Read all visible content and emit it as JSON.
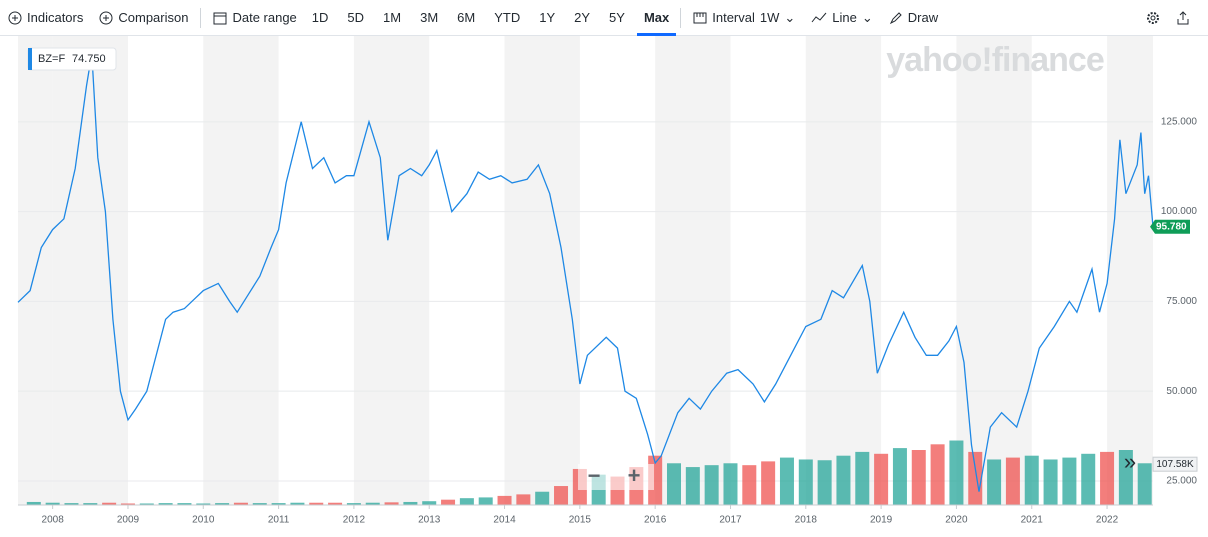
{
  "toolbar": {
    "indicators": "Indicators",
    "comparison": "Comparison",
    "date_range": "Date range",
    "ranges": [
      "1D",
      "5D",
      "1M",
      "3M",
      "6M",
      "YTD",
      "1Y",
      "2Y",
      "5Y",
      "Max"
    ],
    "active_range": "Max",
    "interval": "Interval",
    "interval_value": "1W",
    "line": "Line",
    "draw": "Draw"
  },
  "watermark": "yahoo!finance",
  "zoom": {
    "minus": "−",
    "plus": "+",
    "more": "»"
  },
  "chart_data": {
    "type": "line",
    "legend": {
      "symbol": "BZ=F",
      "value": 74.75,
      "label": "74.750"
    },
    "xlim": [
      2007.54,
      2022.61
    ],
    "xticks": [
      2008,
      2009,
      2010,
      2011,
      2012,
      2013,
      2014,
      2015,
      2016,
      2017,
      2018,
      2019,
      2020,
      2021,
      2022
    ],
    "ylim": [
      18.3,
      148.9
    ],
    "yticks": [
      {
        "value": 25,
        "label": "25.000"
      },
      {
        "value": 50,
        "label": "50.000"
      },
      {
        "value": 75,
        "label": "75.000"
      },
      {
        "value": 100,
        "label": "100.000"
      },
      {
        "value": 125,
        "label": "125.000"
      }
    ],
    "grid": true,
    "x": [
      2007.54,
      2007.7,
      2007.85,
      2008.0,
      2008.15,
      2008.3,
      2008.45,
      2008.52,
      2008.6,
      2008.7,
      2008.8,
      2008.9,
      2009.0,
      2009.1,
      2009.25,
      2009.4,
      2009.5,
      2009.6,
      2009.75,
      2009.9,
      2010.0,
      2010.2,
      2010.35,
      2010.45,
      2010.6,
      2010.75,
      2010.9,
      2011.0,
      2011.1,
      2011.3,
      2011.45,
      2011.6,
      2011.75,
      2011.9,
      2012.0,
      2012.2,
      2012.35,
      2012.45,
      2012.6,
      2012.75,
      2012.9,
      2013.0,
      2013.1,
      2013.3,
      2013.5,
      2013.65,
      2013.8,
      2013.95,
      2014.1,
      2014.3,
      2014.45,
      2014.6,
      2014.75,
      2014.9,
      2015.0,
      2015.1,
      2015.35,
      2015.5,
      2015.6,
      2015.75,
      2015.9,
      2016.0,
      2016.08,
      2016.3,
      2016.45,
      2016.6,
      2016.75,
      2016.95,
      2017.1,
      2017.3,
      2017.45,
      2017.6,
      2017.8,
      2018.0,
      2018.2,
      2018.35,
      2018.5,
      2018.75,
      2018.85,
      2018.95,
      2019.1,
      2019.3,
      2019.45,
      2019.6,
      2019.75,
      2019.9,
      2020.0,
      2020.1,
      2020.2,
      2020.3,
      2020.45,
      2020.6,
      2020.8,
      2020.95,
      2021.1,
      2021.3,
      2021.5,
      2021.6,
      2021.8,
      2021.9,
      2022.0,
      2022.1,
      2022.17,
      2022.25,
      2022.4,
      2022.45,
      2022.5,
      2022.55,
      2022.61
    ],
    "series": [
      {
        "name": "BZ=F",
        "color": "#1e88e5",
        "values": [
          74.75,
          78,
          90,
          95,
          98,
          112,
          135,
          144,
          115,
          100,
          70,
          50,
          42,
          45,
          50,
          62,
          70,
          72,
          73,
          76,
          78,
          80,
          75,
          72,
          77,
          82,
          90,
          95,
          108,
          125,
          112,
          115,
          108,
          110,
          110,
          125,
          115,
          92,
          110,
          112,
          110,
          113,
          117,
          100,
          105,
          111,
          109,
          110,
          108,
          109,
          113,
          105,
          90,
          70,
          52,
          60,
          65,
          62,
          50,
          48,
          38,
          30,
          32,
          44,
          48,
          45,
          50,
          55,
          56,
          52,
          47,
          52,
          60,
          68,
          70,
          78,
          76,
          85,
          75,
          55,
          63,
          72,
          65,
          60,
          60,
          64,
          68,
          58,
          35,
          22,
          40,
          44,
          40,
          50,
          62,
          68,
          75,
          72,
          84,
          72,
          80,
          98,
          120,
          105,
          113,
          122,
          105,
          110,
          95.78
        ]
      }
    ],
    "last_price": {
      "value": 95.78,
      "label": "95.780"
    },
    "volume": {
      "ylim": [
        0,
        290
      ],
      "label": "107.58K",
      "last": 107.58,
      "x": [
        2007.75,
        2008.0,
        2008.25,
        2008.5,
        2008.75,
        2009.0,
        2009.25,
        2009.5,
        2009.75,
        2010.0,
        2010.25,
        2010.5,
        2010.75,
        2011.0,
        2011.25,
        2011.5,
        2011.75,
        2012.0,
        2012.25,
        2012.5,
        2012.75,
        2013.0,
        2013.25,
        2013.5,
        2013.75,
        2014.0,
        2014.25,
        2014.5,
        2014.75,
        2015.0,
        2015.25,
        2015.5,
        2015.75,
        2016.0,
        2016.25,
        2016.5,
        2016.75,
        2017.0,
        2017.25,
        2017.5,
        2017.75,
        2018.0,
        2018.25,
        2018.5,
        2018.75,
        2019.0,
        2019.25,
        2019.5,
        2019.75,
        2020.0,
        2020.25,
        2020.5,
        2020.75,
        2021.0,
        2021.25,
        2021.5,
        2021.75,
        2022.0,
        2022.25,
        2022.5
      ],
      "values": [
        8,
        6,
        5,
        5,
        6,
        4,
        4,
        5,
        5,
        4,
        5,
        6,
        5,
        5,
        6,
        6,
        6,
        5,
        6,
        7,
        8,
        10,
        14,
        18,
        20,
        24,
        28,
        35,
        50,
        95,
        80,
        75,
        100,
        130,
        110,
        100,
        105,
        110,
        105,
        115,
        125,
        120,
        118,
        130,
        140,
        135,
        150,
        145,
        160,
        170,
        140,
        120,
        125,
        130,
        120,
        125,
        135,
        140,
        145,
        110
      ],
      "up_color": "#26a69a",
      "down_color": "#ef5350"
    }
  }
}
